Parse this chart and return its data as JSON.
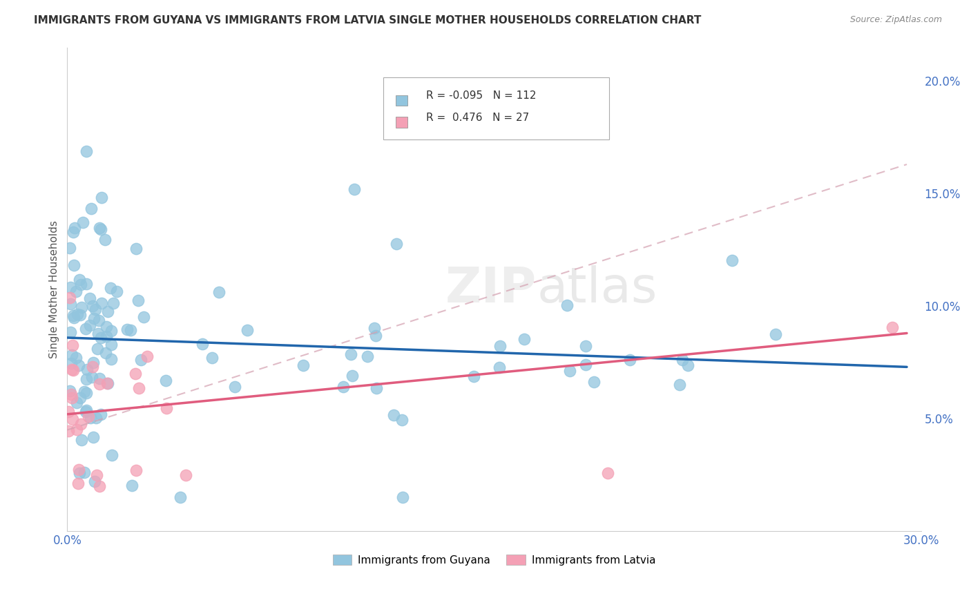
{
  "title": "IMMIGRANTS FROM GUYANA VS IMMIGRANTS FROM LATVIA SINGLE MOTHER HOUSEHOLDS CORRELATION CHART",
  "source": "Source: ZipAtlas.com",
  "ylabel": "Single Mother Households",
  "xlim": [
    0.0,
    0.3
  ],
  "ylim": [
    0.0,
    0.215
  ],
  "xticks": [
    0.0,
    0.05,
    0.1,
    0.15,
    0.2,
    0.25,
    0.3
  ],
  "xticklabels": [
    "0.0%",
    "",
    "",
    "",
    "",
    "",
    "30.0%"
  ],
  "yticks_right": [
    0.05,
    0.1,
    0.15,
    0.2
  ],
  "ytick_labels_right": [
    "5.0%",
    "10.0%",
    "15.0%",
    "20.0%"
  ],
  "color_guyana": "#92c5de",
  "color_latvia": "#f4a0b5",
  "line_color_guyana": "#2166ac",
  "line_color_latvia": "#e05c7e",
  "dashed_line_color": "#f4a0b5",
  "legend_r_guyana": "-0.095",
  "legend_n_guyana": "112",
  "legend_r_latvia": "0.476",
  "legend_n_latvia": "27",
  "watermark": "ZIPatlas",
  "guyana_line_x0": 0.0,
  "guyana_line_y0": 0.086,
  "guyana_line_x1": 0.295,
  "guyana_line_y1": 0.073,
  "latvia_line_x0": 0.0,
  "latvia_line_y0": 0.052,
  "latvia_line_x1": 0.295,
  "latvia_line_y1": 0.088
}
